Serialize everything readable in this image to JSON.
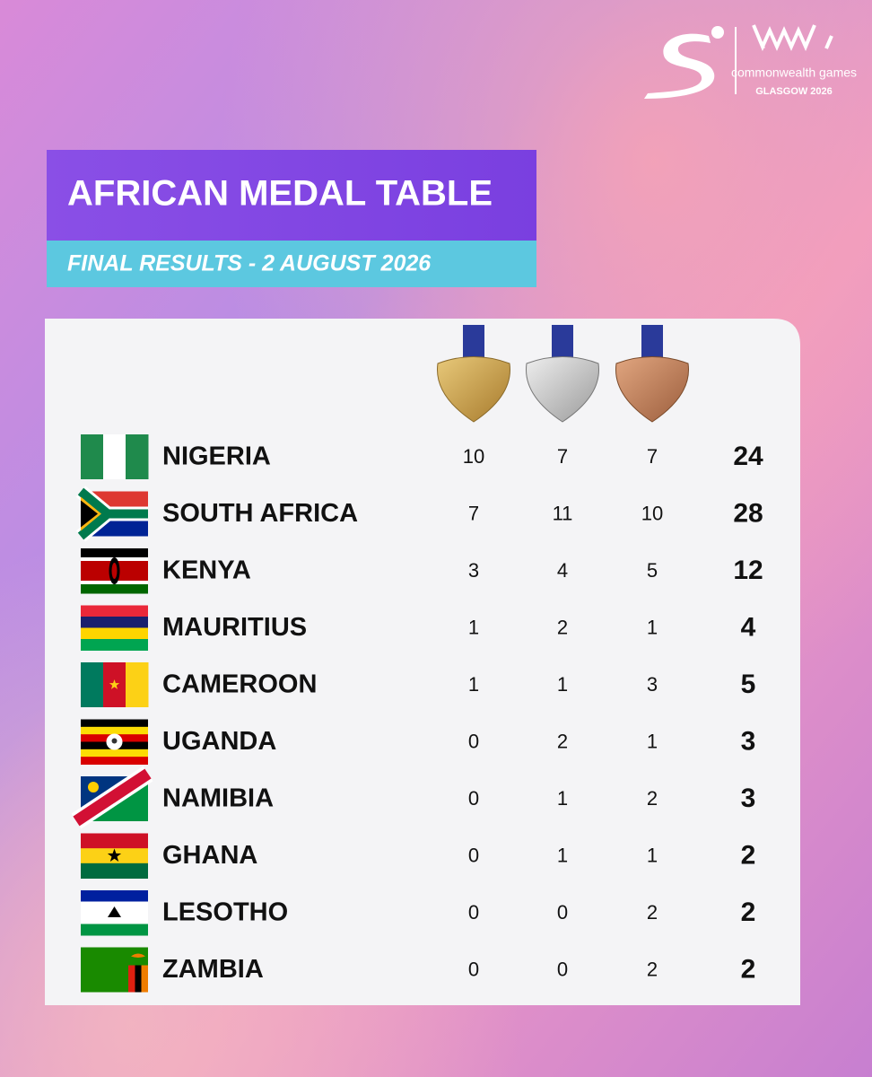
{
  "logo": {
    "brand": "commonwealth games",
    "event": "GLASGOW 2026"
  },
  "header": {
    "title": "AFRICAN MEDAL TABLE",
    "subtitle": "FINAL RESULTS - 2 AUGUST 2026"
  },
  "table": {
    "rows": [
      [
        "NIGERIA",
        10,
        7,
        7,
        24
      ],
      [
        "SOUTH AFRICA",
        7,
        11,
        10,
        28
      ],
      [
        "KENYA",
        3,
        4,
        5,
        12
      ],
      [
        "MAURITIUS",
        1,
        2,
        1,
        4
      ],
      [
        "CAMEROON",
        1,
        1,
        3,
        5
      ],
      [
        "UGANDA",
        0,
        2,
        1,
        3
      ],
      [
        "NAMIBIA",
        0,
        1,
        2,
        3
      ],
      [
        "GHANA",
        0,
        1,
        1,
        2
      ],
      [
        "LESOTHO",
        0,
        0,
        2,
        2
      ],
      [
        "ZAMBIA",
        0,
        0,
        2,
        2
      ]
    ]
  }
}
